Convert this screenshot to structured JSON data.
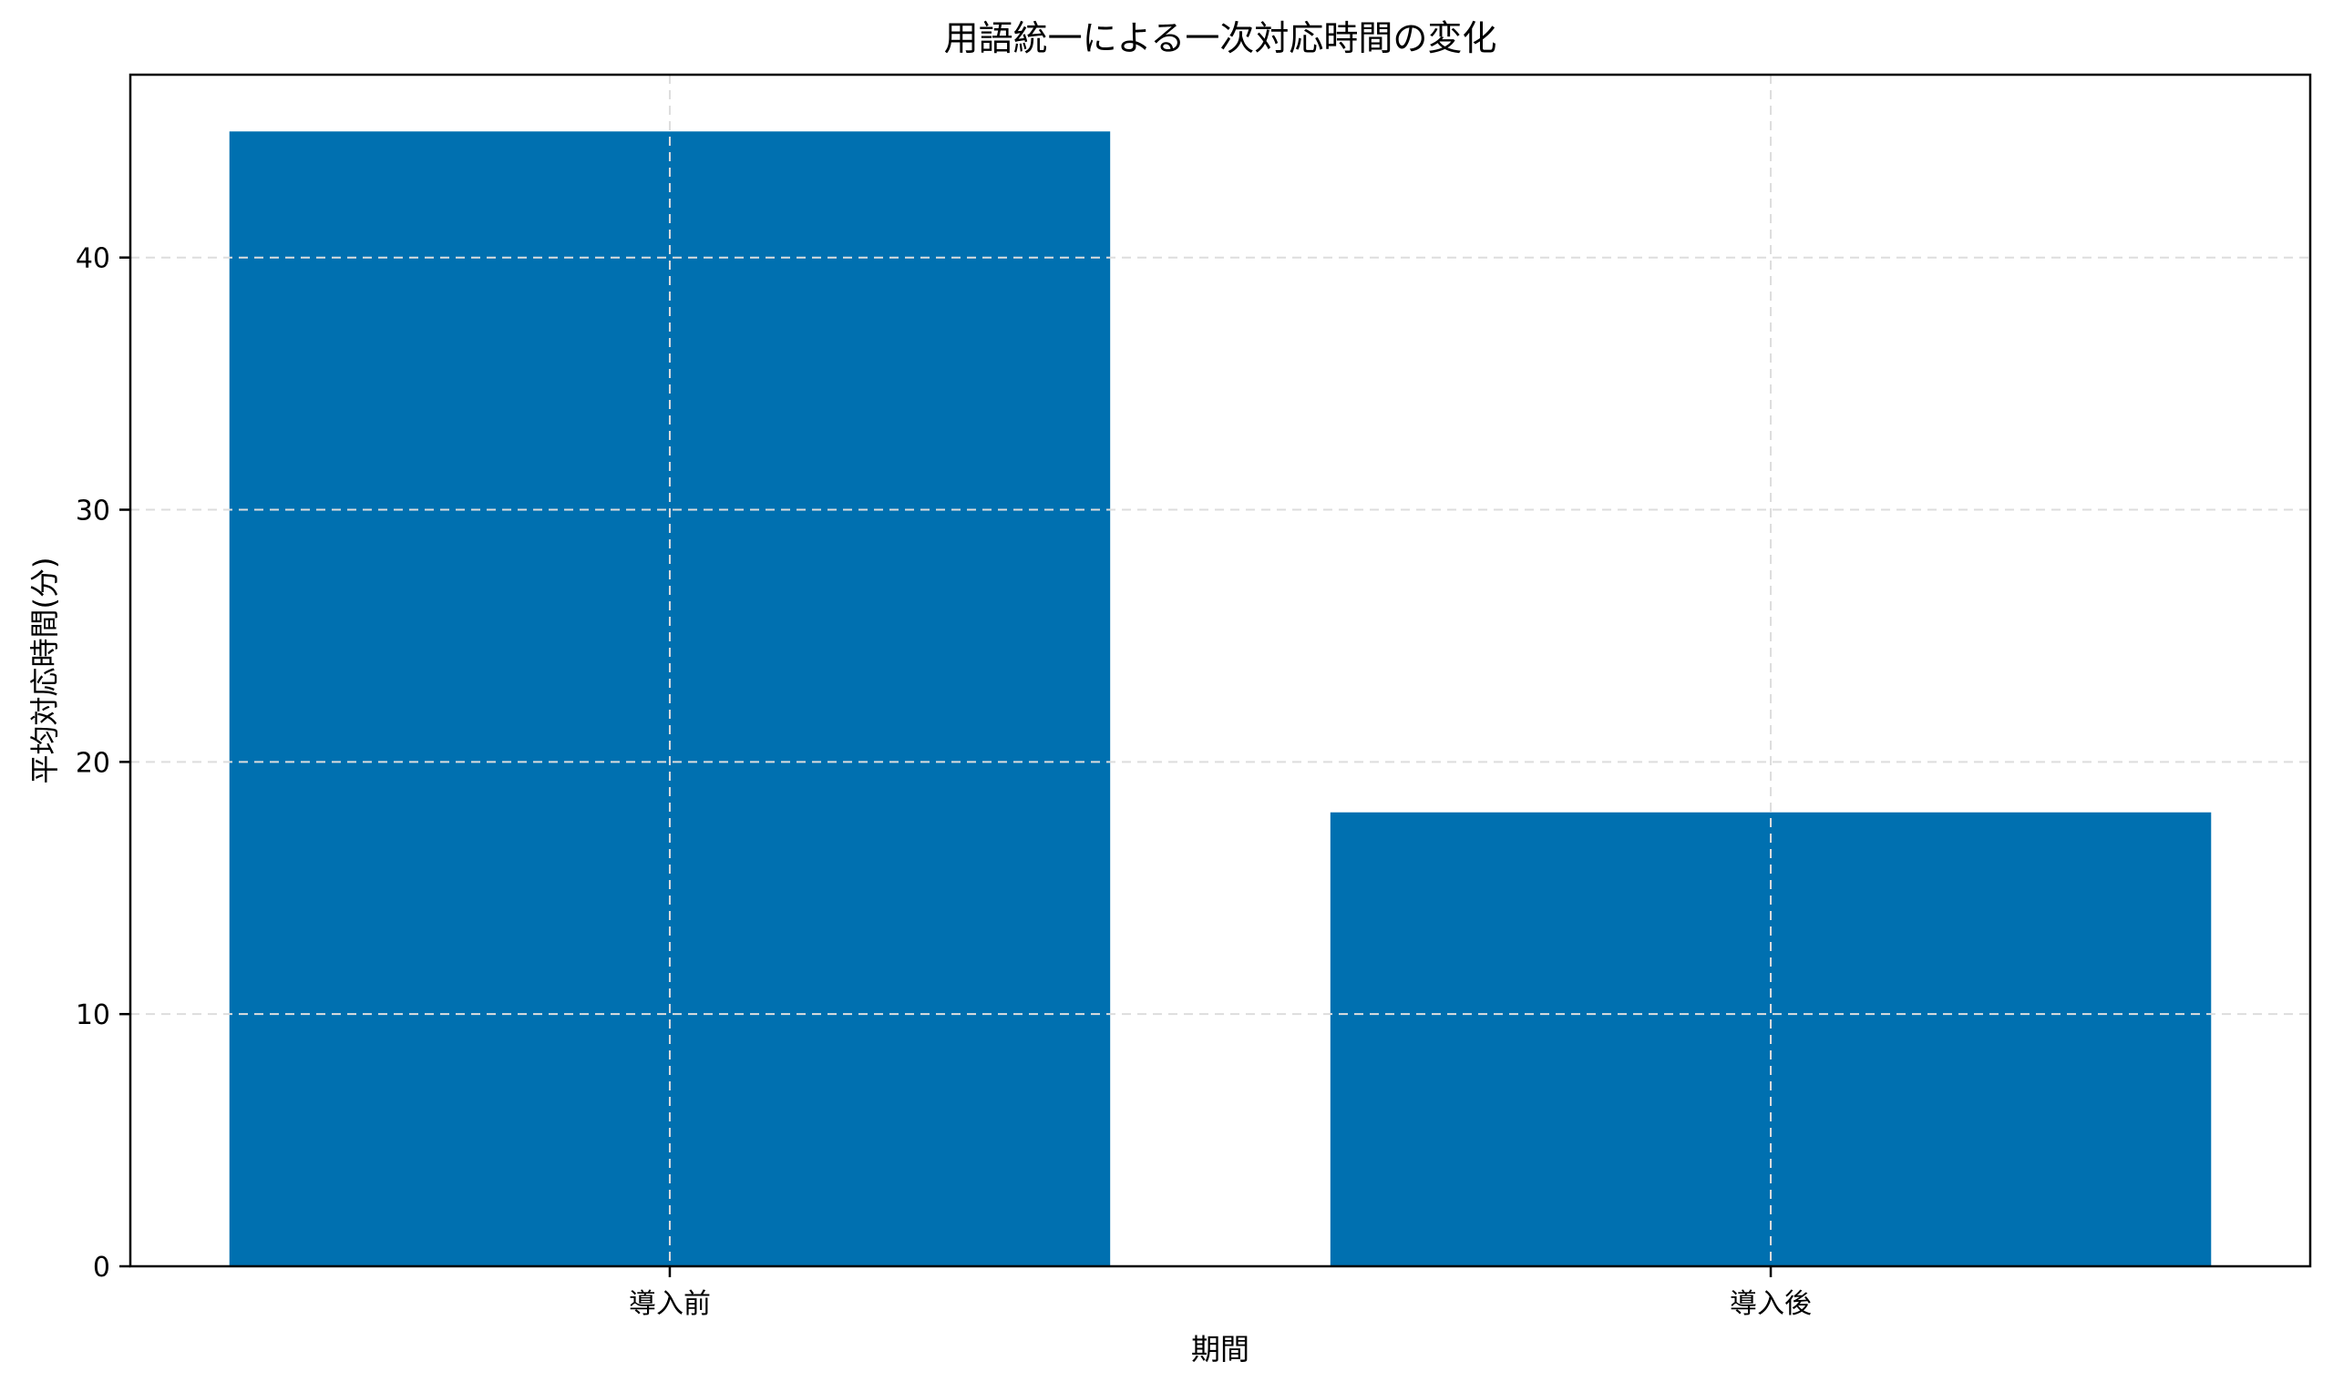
{
  "chart_data": {
    "type": "bar",
    "title": "用語統一による一次対応時間の変化",
    "xlabel": "期間",
    "ylabel": "平均対応時間(分)",
    "categories": [
      "導入前",
      "導入後"
    ],
    "values": [
      45,
      18
    ],
    "ylim": [
      0,
      47.25
    ],
    "yticks": [
      0,
      10,
      20,
      30,
      40
    ],
    "grid": true,
    "legend": "none",
    "colors": {
      "bar": "#0070b0",
      "grid": "#dddddd",
      "axis": "#000000"
    }
  }
}
